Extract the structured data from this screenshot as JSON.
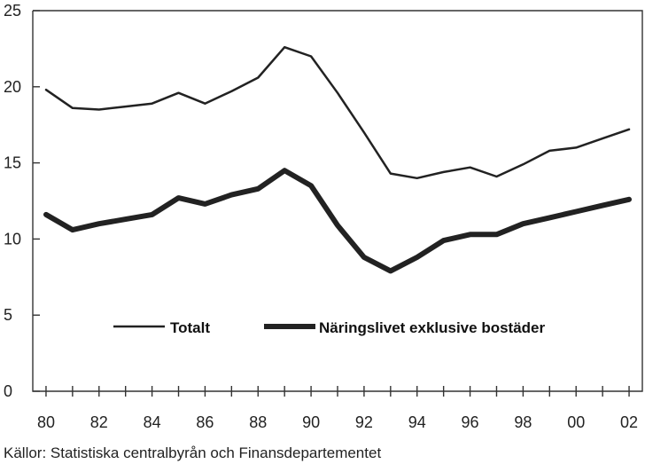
{
  "chart_data": {
    "type": "line",
    "x_tick_labels": [
      "80",
      "82",
      "84",
      "86",
      "88",
      "90",
      "92",
      "94",
      "96",
      "98",
      "00",
      "02"
    ],
    "x": [
      1980,
      1981,
      1982,
      1983,
      1984,
      1985,
      1986,
      1987,
      1988,
      1989,
      1990,
      1991,
      1992,
      1993,
      1994,
      1995,
      1996,
      1997,
      1998,
      1999,
      2000,
      2001,
      2002
    ],
    "xlim": [
      1979.5,
      2002.5
    ],
    "y_ticks": [
      0,
      5,
      10,
      15,
      20,
      25
    ],
    "ylim": [
      0,
      25
    ],
    "series": [
      {
        "name": "Totalt",
        "color": "#222222",
        "values": [
          19.8,
          18.6,
          18.5,
          18.7,
          18.9,
          19.6,
          18.9,
          19.7,
          20.6,
          22.6,
          22.0,
          19.6,
          17.0,
          14.3,
          14.0,
          14.4,
          14.7,
          14.1,
          14.9,
          15.8,
          16.0,
          16.6,
          17.2
        ]
      },
      {
        "name": "Näringslivet exklusive bostäder",
        "color": "#222222",
        "values": [
          11.6,
          10.6,
          11.0,
          11.3,
          11.6,
          12.7,
          12.3,
          12.9,
          13.3,
          14.5,
          13.5,
          10.9,
          8.8,
          7.9,
          8.8,
          9.9,
          10.3,
          10.3,
          11.0,
          11.4,
          11.8,
          12.2,
          12.6
        ]
      }
    ],
    "legend_position": "bottom-center",
    "grid": false,
    "source": "Källor: Statistiska centralbyrån och Finansdepartementet"
  }
}
